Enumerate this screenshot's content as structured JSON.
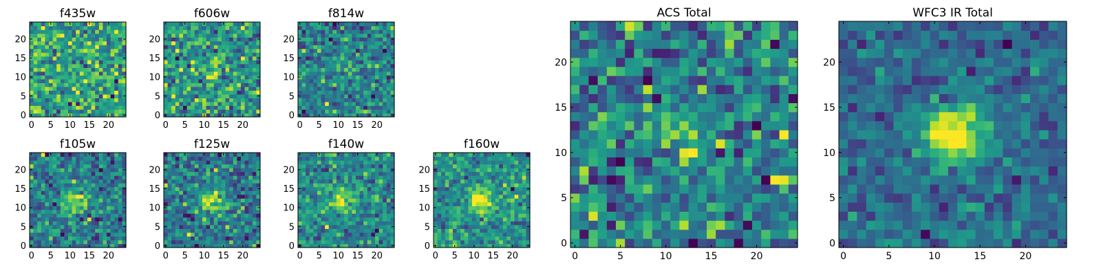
{
  "figure": {
    "colormap": "viridis",
    "background": "#ffffff"
  },
  "chart_data": [
    {
      "type": "heatmap",
      "title": "f435w",
      "xlabel": "",
      "ylabel": "",
      "xlim": [
        -0.5,
        24.5
      ],
      "ylim": [
        -0.5,
        24.5
      ],
      "xticks": [
        0,
        5,
        10,
        15,
        20
      ],
      "yticks": [
        0,
        5,
        10,
        15,
        20
      ],
      "colormap": "viridis",
      "grid": false,
      "legend": "none",
      "source_noise": 1.0,
      "source_signal": 0.0
    },
    {
      "type": "heatmap",
      "title": "f606w",
      "xlabel": "",
      "ylabel": "",
      "xlim": [
        -0.5,
        24.5
      ],
      "ylim": [
        -0.5,
        24.5
      ],
      "xticks": [
        0,
        5,
        10,
        15,
        20
      ],
      "yticks": [
        0,
        5,
        10,
        15,
        20
      ],
      "colormap": "viridis",
      "grid": false,
      "legend": "none",
      "source_noise": 1.0,
      "source_signal": 0.8
    },
    {
      "type": "heatmap",
      "title": "f814w",
      "xlabel": "",
      "ylabel": "",
      "xlim": [
        -0.5,
        24.5
      ],
      "ylim": [
        -0.5,
        24.5
      ],
      "xticks": [
        0,
        5,
        10,
        15,
        20
      ],
      "yticks": [
        0,
        5,
        10,
        15,
        20
      ],
      "colormap": "viridis",
      "grid": false,
      "legend": "none",
      "source_noise": 1.0,
      "source_signal": 0.6
    },
    {
      "type": "heatmap",
      "title": "f105w",
      "xlabel": "",
      "ylabel": "",
      "xlim": [
        -0.5,
        24.5
      ],
      "ylim": [
        -0.5,
        24.5
      ],
      "xticks": [
        0,
        5,
        10,
        15,
        20
      ],
      "yticks": [
        0,
        5,
        10,
        15,
        20
      ],
      "colormap": "viridis",
      "grid": false,
      "legend": "none",
      "source_noise": 0.8,
      "source_signal": 1.5
    },
    {
      "type": "heatmap",
      "title": "f125w",
      "xlabel": "",
      "ylabel": "",
      "xlim": [
        -0.5,
        24.5
      ],
      "ylim": [
        -0.5,
        24.5
      ],
      "xticks": [
        0,
        5,
        10,
        15,
        20
      ],
      "yticks": [
        0,
        5,
        10,
        15,
        20
      ],
      "colormap": "viridis",
      "grid": false,
      "legend": "none",
      "source_noise": 0.8,
      "source_signal": 1.4
    },
    {
      "type": "heatmap",
      "title": "f140w",
      "xlabel": "",
      "ylabel": "",
      "xlim": [
        -0.5,
        24.5
      ],
      "ylim": [
        -0.5,
        24.5
      ],
      "xticks": [
        0,
        5,
        10,
        15,
        20
      ],
      "yticks": [
        0,
        5,
        10,
        15,
        20
      ],
      "colormap": "viridis",
      "grid": false,
      "legend": "none",
      "source_noise": 0.8,
      "source_signal": 1.5
    },
    {
      "type": "heatmap",
      "title": "f160w",
      "xlabel": "",
      "ylabel": "",
      "xlim": [
        -0.5,
        24.5
      ],
      "ylim": [
        -0.5,
        24.5
      ],
      "xticks": [
        0,
        5,
        10,
        15,
        20
      ],
      "yticks": [
        0,
        5,
        10,
        15,
        20
      ],
      "colormap": "viridis",
      "grid": false,
      "legend": "none",
      "source_noise": 0.8,
      "source_signal": 1.6
    },
    {
      "type": "heatmap",
      "title": "ACS Total",
      "xlabel": "",
      "ylabel": "",
      "xlim": [
        -0.5,
        24.5
      ],
      "ylim": [
        -0.5,
        24.5
      ],
      "xticks": [
        0,
        5,
        10,
        15,
        20
      ],
      "yticks": [
        0,
        5,
        10,
        15,
        20
      ],
      "colormap": "viridis",
      "grid": false,
      "legend": "none",
      "source_noise": 1.0,
      "source_signal": 0.8
    },
    {
      "type": "heatmap",
      "title": "WFC3 IR Total",
      "xlabel": "",
      "ylabel": "",
      "xlim": [
        -0.5,
        24.5
      ],
      "ylim": [
        -0.5,
        24.5
      ],
      "xticks": [
        0,
        5,
        10,
        15,
        20
      ],
      "yticks": [
        0,
        5,
        10,
        15,
        20
      ],
      "colormap": "viridis",
      "grid": false,
      "legend": "none",
      "source_noise": 0.55,
      "source_signal": 2.6
    }
  ]
}
